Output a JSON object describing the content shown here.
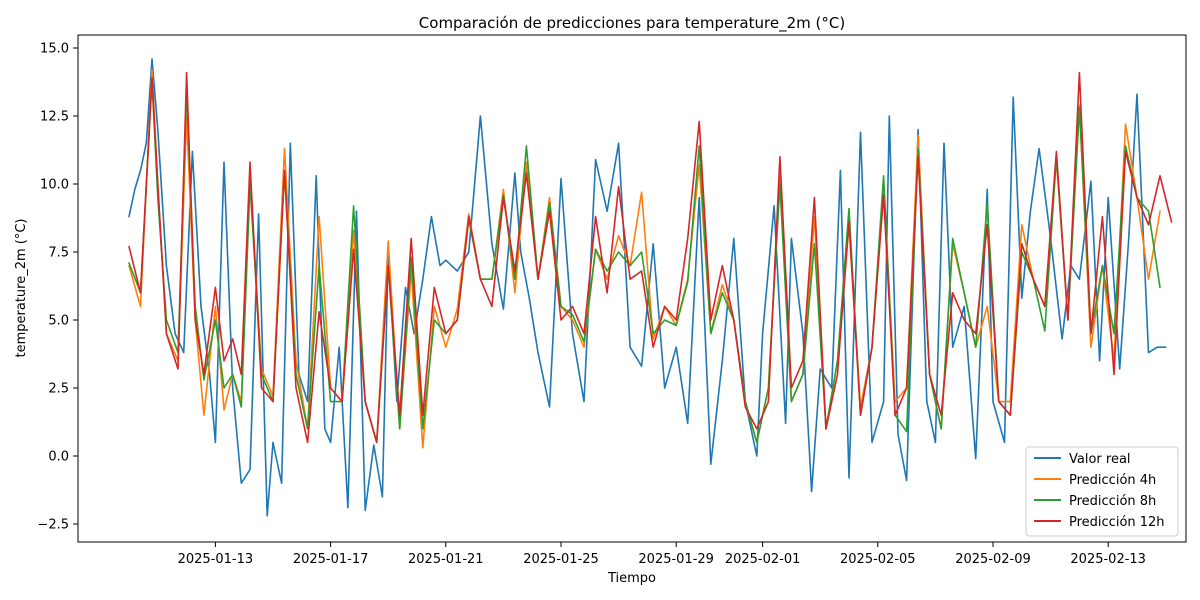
{
  "chart_data": {
    "type": "line",
    "title": "Comparación de predicciones para temperature_2m (°C)",
    "xlabel": "Tiempo",
    "ylabel": "temperature_2m (°C)",
    "x_start": "2025-01-10",
    "x_range": [
      "2025-01-09T04:00",
      "2025-02-15T06:00"
    ],
    "ylim": [
      -3.2,
      15.5
    ],
    "yticks": [
      -2.5,
      0.0,
      2.5,
      5.0,
      7.5,
      10.0,
      12.5,
      15.0
    ],
    "ytick_labels": [
      "−2.5",
      "0.0",
      "2.5",
      "5.0",
      "7.5",
      "10.0",
      "12.5",
      "15.0"
    ],
    "xticks": [
      "2025-01-13",
      "2025-01-17",
      "2025-01-21",
      "2025-01-25",
      "2025-01-29",
      "2025-02-01",
      "2025-02-05",
      "2025-02-09",
      "2025-02-13"
    ],
    "grid": false,
    "legend_position": "lower-right",
    "series": [
      {
        "name": "Valor real",
        "color": "#1f77b4",
        "x_days": [
          0.0,
          0.2,
          0.4,
          0.6,
          0.8,
          1.0,
          1.3,
          1.6,
          1.9,
          2.2,
          2.5,
          2.8,
          3.0,
          3.3,
          3.6,
          3.9,
          4.2,
          4.5,
          4.8,
          5.0,
          5.3,
          5.6,
          5.9,
          6.2,
          6.5,
          6.8,
          7.0,
          7.3,
          7.6,
          7.9,
          8.2,
          8.5,
          8.8,
          9.0,
          9.3,
          9.6,
          9.9,
          10.2,
          10.5,
          10.8,
          11.0,
          11.4,
          11.8,
          12.2,
          12.6,
          13.0,
          13.4,
          13.6,
          13.9,
          14.2,
          14.6,
          15.0,
          15.4,
          15.8,
          16.2,
          16.6,
          17.0,
          17.4,
          17.8,
          18.2,
          18.6,
          19.0,
          19.4,
          19.8,
          20.2,
          20.6,
          21.0,
          21.4,
          21.8,
          22.0,
          22.4,
          22.8,
          23.0,
          23.4,
          23.7,
          24.0,
          24.4,
          24.7,
          25.0,
          25.4,
          25.8,
          26.2,
          26.4,
          26.7,
          27.0,
          27.4,
          27.7,
          28.0,
          28.3,
          28.6,
          29.0,
          29.4,
          29.8,
          30.0,
          30.4,
          30.7,
          31.0,
          31.3,
          31.6,
          32.0,
          32.4,
          32.7,
          33.0,
          33.4,
          33.7,
          34.0,
          34.4,
          34.7,
          35.0,
          35.4,
          35.7,
          36.0
        ],
        "values": [
          8.8,
          9.8,
          10.5,
          11.5,
          14.6,
          12.0,
          7.0,
          4.5,
          3.8,
          11.2,
          5.5,
          3.0,
          0.5,
          10.8,
          2.5,
          -1.0,
          -0.5,
          8.9,
          -2.2,
          0.5,
          -1.0,
          11.5,
          3.0,
          2.0,
          10.3,
          1.0,
          0.5,
          4.0,
          -1.9,
          9.0,
          -2.0,
          0.4,
          -1.5,
          7.5,
          2.0,
          6.2,
          4.5,
          6.5,
          8.8,
          7.0,
          7.2,
          6.8,
          7.5,
          12.5,
          7.8,
          5.4,
          10.4,
          7.5,
          5.8,
          3.8,
          1.8,
          10.2,
          4.5,
          2.0,
          10.9,
          9.0,
          11.5,
          4.0,
          3.3,
          7.8,
          2.5,
          4.0,
          1.2,
          9.5,
          -0.3,
          3.5,
          8.0,
          2.0,
          0.0,
          4.5,
          9.2,
          1.2,
          8.0,
          4.5,
          -1.3,
          3.2,
          2.5,
          10.5,
          -0.8,
          11.9,
          0.5,
          2.0,
          12.5,
          0.8,
          -0.9,
          12.0,
          2.0,
          0.5,
          11.5,
          4.0,
          5.5,
          -0.1,
          9.8,
          2.0,
          0.5,
          13.2,
          5.8,
          9.0,
          11.3,
          8.0,
          4.3,
          7.0,
          6.5,
          10.1,
          3.5,
          9.5,
          3.2,
          7.8,
          13.3,
          3.8,
          4.0,
          4.0
        ]
      },
      {
        "name": "Predicción 4h",
        "color": "#ff7f0e",
        "x_days": [
          0.0,
          0.4,
          0.8,
          1.0,
          1.3,
          1.7,
          2.0,
          2.3,
          2.6,
          3.0,
          3.3,
          3.6,
          3.9,
          4.2,
          4.6,
          5.0,
          5.4,
          5.8,
          6.2,
          6.6,
          7.0,
          7.4,
          7.8,
          8.2,
          8.6,
          9.0,
          9.4,
          9.8,
          10.2,
          10.6,
          11.0,
          11.4,
          11.8,
          12.2,
          12.6,
          13.0,
          13.4,
          13.8,
          14.2,
          14.6,
          15.0,
          15.4,
          15.8,
          16.2,
          16.6,
          17.0,
          17.4,
          17.8,
          18.2,
          18.6,
          19.0,
          19.4,
          19.8,
          20.2,
          20.6,
          21.0,
          21.4,
          21.8,
          22.2,
          22.6,
          23.0,
          23.4,
          23.8,
          24.2,
          24.6,
          25.0,
          25.4,
          25.8,
          26.2,
          26.6,
          27.0,
          27.4,
          27.8,
          28.2,
          28.6,
          29.0,
          29.4,
          29.8,
          30.2,
          30.6,
          31.0,
          31.4,
          31.8,
          32.2,
          32.6,
          33.0,
          33.4,
          33.8,
          34.2,
          34.6,
          35.0,
          35.4,
          35.8
        ],
        "values": [
          7.0,
          5.5,
          14.2,
          10.0,
          4.5,
          3.5,
          12.5,
          5.0,
          1.5,
          5.5,
          1.7,
          3.0,
          2.0,
          10.2,
          3.2,
          2.2,
          11.3,
          3.5,
          1.0,
          8.8,
          2.5,
          2.0,
          8.3,
          2.0,
          0.5,
          7.9,
          1.0,
          6.8,
          0.3,
          5.5,
          4.0,
          5.4,
          8.9,
          6.5,
          6.5,
          9.8,
          6.0,
          10.8,
          6.5,
          9.5,
          5.5,
          5.0,
          4.0,
          7.6,
          6.5,
          8.1,
          7.0,
          9.7,
          4.3,
          5.5,
          4.8,
          6.5,
          10.7,
          4.5,
          6.3,
          5.0,
          2.0,
          0.5,
          2.5,
          10.3,
          2.0,
          3.0,
          8.8,
          1.0,
          3.5,
          8.5,
          1.8,
          4.0,
          10.0,
          2.0,
          2.5,
          11.8,
          3.0,
          1.0,
          7.8,
          6.0,
          4.0,
          5.5,
          2.0,
          2.0,
          8.5,
          6.5,
          5.5,
          10.9,
          5.0,
          12.9,
          4.0,
          7.0,
          3.5,
          12.2,
          9.5,
          6.5,
          9.0
        ]
      },
      {
        "name": "Predicción 8h",
        "color": "#2ca02c",
        "x_days": [
          0.0,
          0.4,
          0.8,
          1.0,
          1.3,
          1.7,
          2.0,
          2.3,
          2.6,
          3.0,
          3.3,
          3.6,
          3.9,
          4.2,
          4.6,
          5.0,
          5.4,
          5.8,
          6.2,
          6.6,
          7.0,
          7.4,
          7.8,
          8.2,
          8.6,
          9.0,
          9.4,
          9.8,
          10.2,
          10.6,
          11.0,
          11.4,
          11.8,
          12.2,
          12.6,
          13.0,
          13.4,
          13.8,
          14.2,
          14.6,
          15.0,
          15.4,
          15.8,
          16.2,
          16.6,
          17.0,
          17.4,
          17.8,
          18.2,
          18.6,
          19.0,
          19.4,
          19.8,
          20.2,
          20.6,
          21.0,
          21.4,
          21.8,
          22.2,
          22.6,
          23.0,
          23.4,
          23.8,
          24.2,
          24.6,
          25.0,
          25.4,
          25.8,
          26.2,
          26.6,
          27.0,
          27.4,
          27.8,
          28.2,
          28.6,
          29.0,
          29.4,
          29.8,
          30.2,
          30.6,
          31.0,
          31.4,
          31.8,
          32.2,
          32.6,
          33.0,
          33.4,
          33.8,
          34.2,
          34.6,
          35.0,
          35.4,
          35.8
        ],
        "values": [
          7.1,
          6.0,
          13.8,
          9.5,
          5.0,
          3.8,
          13.5,
          5.5,
          2.8,
          5.0,
          2.5,
          3.0,
          1.8,
          10.0,
          3.0,
          2.0,
          10.5,
          3.0,
          1.0,
          7.0,
          2.0,
          2.0,
          9.2,
          2.0,
          0.5,
          7.0,
          1.0,
          7.3,
          1.0,
          5.0,
          4.5,
          5.0,
          8.7,
          6.5,
          6.5,
          9.6,
          6.5,
          11.4,
          6.5,
          9.3,
          5.5,
          5.2,
          4.2,
          7.6,
          6.8,
          7.5,
          7.0,
          7.5,
          4.5,
          5.0,
          4.8,
          6.4,
          11.4,
          4.5,
          6.0,
          5.0,
          2.0,
          0.5,
          2.5,
          10.0,
          2.0,
          3.0,
          7.8,
          1.0,
          3.5,
          9.1,
          1.5,
          4.0,
          10.3,
          1.5,
          0.9,
          11.3,
          3.0,
          1.0,
          8.0,
          6.0,
          4.0,
          9.3,
          2.0,
          1.5,
          7.5,
          6.5,
          4.6,
          11.0,
          5.0,
          12.8,
          4.5,
          7.0,
          4.5,
          11.4,
          9.5,
          9.0,
          6.2
        ]
      },
      {
        "name": "Predicción 12h",
        "color": "#d62728",
        "x_days": [
          0.0,
          0.4,
          0.8,
          1.0,
          1.3,
          1.7,
          2.0,
          2.3,
          2.6,
          3.0,
          3.3,
          3.6,
          3.9,
          4.2,
          4.6,
          5.0,
          5.4,
          5.8,
          6.2,
          6.6,
          7.0,
          7.4,
          7.8,
          8.2,
          8.6,
          9.0,
          9.4,
          9.8,
          10.2,
          10.6,
          11.0,
          11.4,
          11.8,
          12.2,
          12.6,
          13.0,
          13.4,
          13.8,
          14.2,
          14.6,
          15.0,
          15.4,
          15.8,
          16.2,
          16.6,
          17.0,
          17.4,
          17.8,
          18.2,
          18.6,
          19.0,
          19.4,
          19.8,
          20.2,
          20.6,
          21.0,
          21.4,
          21.8,
          22.2,
          22.6,
          23.0,
          23.4,
          23.8,
          24.2,
          24.6,
          25.0,
          25.4,
          25.8,
          26.2,
          26.6,
          27.0,
          27.4,
          27.8,
          28.2,
          28.6,
          29.0,
          29.4,
          29.8,
          30.2,
          30.6,
          31.0,
          31.4,
          31.8,
          32.2,
          32.6,
          33.0,
          33.4,
          33.8,
          34.2,
          34.6,
          35.0,
          35.4,
          35.8,
          36.2
        ],
        "values": [
          7.7,
          6.0,
          13.9,
          10.0,
          4.5,
          3.2,
          14.1,
          5.0,
          3.0,
          6.2,
          3.5,
          4.3,
          3.0,
          10.8,
          2.5,
          2.0,
          10.5,
          2.5,
          0.5,
          5.3,
          2.5,
          2.0,
          7.6,
          2.0,
          0.5,
          7.0,
          1.5,
          8.0,
          1.5,
          6.2,
          4.5,
          5.0,
          8.8,
          6.5,
          5.5,
          9.5,
          6.8,
          10.4,
          6.5,
          9.0,
          5.0,
          5.5,
          4.5,
          8.8,
          6.0,
          9.9,
          6.5,
          6.8,
          4.0,
          5.5,
          5.0,
          8.0,
          12.3,
          5.0,
          7.0,
          5.0,
          1.8,
          1.0,
          2.0,
          11.0,
          2.5,
          3.5,
          9.5,
          1.0,
          3.0,
          8.6,
          1.5,
          4.0,
          9.6,
          1.5,
          2.5,
          11.0,
          3.0,
          1.5,
          6.0,
          5.0,
          4.5,
          8.5,
          2.0,
          1.5,
          7.8,
          6.5,
          5.5,
          11.2,
          5.0,
          14.1,
          4.5,
          8.8,
          3.0,
          11.2,
          9.5,
          8.5,
          10.3,
          8.6
        ]
      }
    ]
  }
}
